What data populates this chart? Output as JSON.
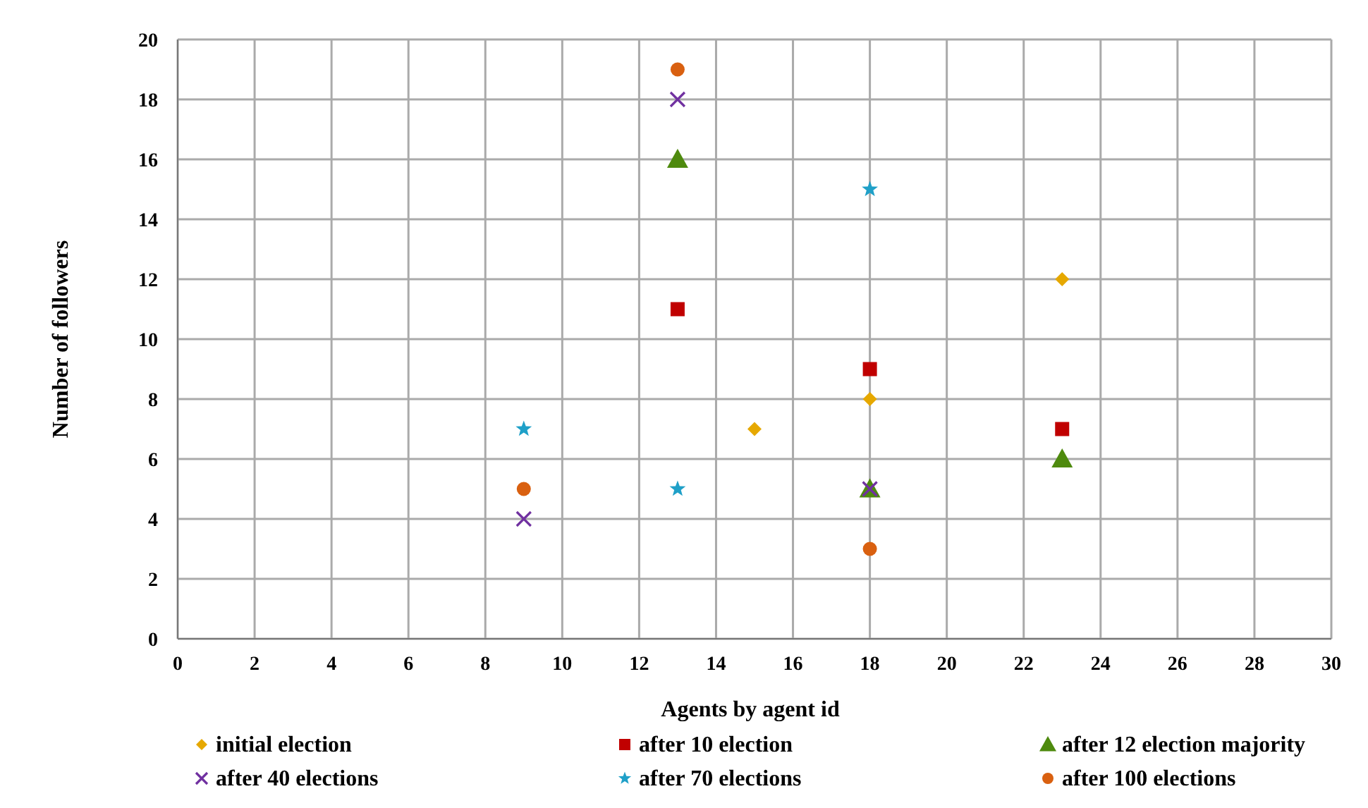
{
  "chart_data": {
    "type": "scatter",
    "xlabel": "Agents by agent id",
    "ylabel": "Number of followers",
    "xlim": [
      0,
      30
    ],
    "xticks": [
      0,
      2,
      4,
      6,
      8,
      10,
      12,
      14,
      16,
      18,
      20,
      22,
      24,
      26,
      28,
      30
    ],
    "ylim": [
      0,
      20
    ],
    "yticks": [
      0,
      2,
      4,
      6,
      8,
      10,
      12,
      14,
      16,
      18,
      20
    ],
    "grid": true,
    "legend": "bottom",
    "series": [
      {
        "name": "initial election",
        "color": "#e6a800",
        "marker": "diamond",
        "x": [
          15,
          18,
          23
        ],
        "values": [
          7,
          8,
          12
        ]
      },
      {
        "name": "after 10 election",
        "color": "#c00000",
        "marker": "square",
        "x": [
          13,
          18,
          23
        ],
        "values": [
          11,
          9,
          7
        ]
      },
      {
        "name": "after 12 election majority",
        "color": "#4e8a0e",
        "marker": "triangle",
        "x": [
          13,
          18,
          23
        ],
        "values": [
          16,
          5,
          6
        ]
      },
      {
        "name": "after 40 elections",
        "color": "#7030a0",
        "marker": "cross",
        "x": [
          9,
          13,
          18
        ],
        "values": [
          4,
          18,
          5
        ]
      },
      {
        "name": "after 70 elections",
        "color": "#1fa0c8",
        "marker": "star",
        "x": [
          9,
          13,
          18
        ],
        "values": [
          7,
          5,
          15
        ]
      },
      {
        "name": "after 100 elections",
        "color": "#d96010",
        "marker": "circle",
        "x": [
          9,
          13,
          18
        ],
        "values": [
          5,
          19,
          3
        ]
      }
    ]
  }
}
